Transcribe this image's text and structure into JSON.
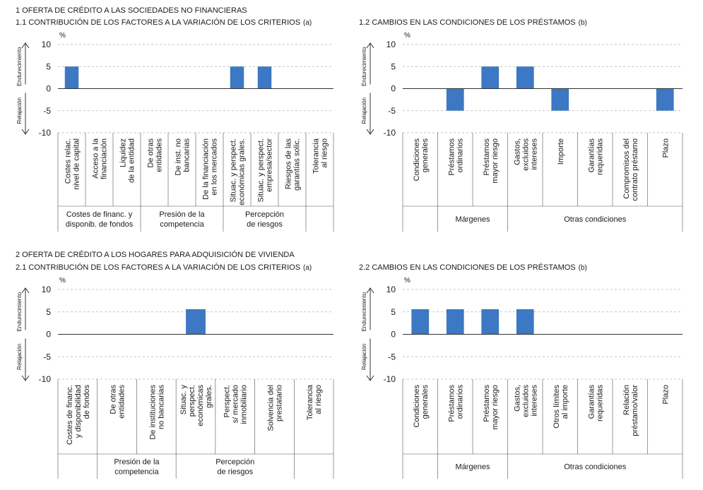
{
  "sections": [
    {
      "title": "1  OFERTA DE CRÉDITO A LAS SOCIEDADES NO FINANCIERAS"
    },
    {
      "title": "2  OFERTA DE CRÉDITO A LOS HOGARES PARA ADQUISICIÓN DE VIVIENDA"
    }
  ],
  "colors": {
    "bar": "#3c78c3",
    "grid": "#b0b0b0",
    "text": "#1a1a1a"
  },
  "chart_data": [
    {
      "type": "bar",
      "title": "1.1  CONTRIBUCIÓN DE LOS FACTORES A LA VARIACIÓN DE LOS CRITERIOS",
      "note": "(a)",
      "unit": "%",
      "ylim": [
        -10,
        10
      ],
      "yticks": [
        "10",
        "5",
        "0",
        "-5",
        "-10"
      ],
      "label_up": "Endurecimiento",
      "label_down": "Relajación",
      "grid": true,
      "categories": [
        [
          "Costes relac.",
          "nivel de capital"
        ],
        [
          "Acceso a la",
          "financiación"
        ],
        [
          "Liquidez",
          "de la entidad"
        ],
        [
          "De otras",
          "entidades"
        ],
        [
          "De inst. no",
          "bancarias"
        ],
        [
          "De la financiación",
          "en los mercados"
        ],
        [
          "Situac. y perspect.",
          "económicas grales."
        ],
        [
          "Situac. y perspect.",
          "empresa/sector"
        ],
        [
          "Riesgos de las",
          "garantías solic."
        ],
        [
          "Tolerancia",
          "al riesgo"
        ]
      ],
      "values": [
        5,
        0,
        0,
        0,
        0,
        0,
        5,
        5,
        0,
        0
      ],
      "groups": [
        {
          "label": [
            "Costes de financ. y",
            "disponib. de fondos"
          ],
          "start": 0,
          "end": 3
        },
        {
          "label": [
            "Presión de la",
            "competencia"
          ],
          "start": 3,
          "end": 6
        },
        {
          "label": [
            "Percepción",
            "de riesgos"
          ],
          "start": 6,
          "end": 9
        },
        {
          "label": [],
          "start": 9,
          "end": 10
        }
      ]
    },
    {
      "type": "bar",
      "title": "1.2  CAMBIOS EN LAS CONDICIONES DE LOS PRÉSTAMOS",
      "note": "(b)",
      "unit": "%",
      "ylim": [
        -10,
        10
      ],
      "yticks": [
        "10",
        "5",
        "0",
        "-5",
        "-10"
      ],
      "label_up": "Endurecimiento",
      "label_down": "Relajación",
      "grid": true,
      "categories": [
        [
          "Condiciones",
          "generales"
        ],
        [
          "Préstamos",
          "ordinarios"
        ],
        [
          "Préstamos",
          "mayor riesgo"
        ],
        [
          "Gastos,",
          "excluidos",
          "intereses"
        ],
        [
          "Importe"
        ],
        [
          "Garantías",
          "requeridas"
        ],
        [
          "Compromisos del",
          "contrato préstamo"
        ],
        [
          "Plazo"
        ]
      ],
      "values": [
        0,
        -5,
        5,
        5,
        -5,
        0,
        0,
        -5
      ],
      "groups": [
        {
          "label": [],
          "start": 0,
          "end": 1
        },
        {
          "label": [
            "Márgenes"
          ],
          "start": 1,
          "end": 3
        },
        {
          "label": [
            "Otras condiciones"
          ],
          "start": 3,
          "end": 8
        }
      ]
    },
    {
      "type": "bar",
      "title": "2.1  CONTRIBUCIÓN DE LOS FACTORES A LA VARIACIÓN DE LOS CRITERIOS",
      "note": "(a)",
      "unit": "%",
      "ylim": [
        -10,
        10
      ],
      "yticks": [
        "10",
        "5",
        "0",
        "-5",
        "-10"
      ],
      "label_up": "Endurecimiento",
      "label_down": "Relajación",
      "grid": true,
      "categories": [
        [
          "Costes de financ.",
          "y disponibilidad",
          "de fondos"
        ],
        [
          "De otras",
          "entidades"
        ],
        [
          "De instituciones",
          "no bancarias"
        ],
        [
          "Situac. y",
          "perspect.",
          "económicas",
          "grales."
        ],
        [
          "Perspect.",
          "s/ mercado",
          "inmobiliario"
        ],
        [
          "Solvencia del",
          "prestatario"
        ],
        [
          "Tolerancia",
          "al riesgo"
        ]
      ],
      "values": [
        0,
        0,
        0,
        5.6,
        0,
        0,
        0
      ],
      "groups": [
        {
          "label": [],
          "start": 0,
          "end": 1
        },
        {
          "label": [
            "Presión de la",
            "competencia"
          ],
          "start": 1,
          "end": 3
        },
        {
          "label": [
            "Percepción",
            "de riesgos"
          ],
          "start": 3,
          "end": 6
        },
        {
          "label": [],
          "start": 6,
          "end": 7
        }
      ]
    },
    {
      "type": "bar",
      "title": "2.2  CAMBIOS EN LAS CONDICIONES DE LOS PRÉSTAMOS",
      "note": "(b)",
      "unit": "%",
      "ylim": [
        -10,
        10
      ],
      "yticks": [
        "10",
        "5",
        "0",
        "-5",
        "-10"
      ],
      "label_up": "Endurecimiento",
      "label_down": "Relajación",
      "grid": true,
      "categories": [
        [
          "Condiciones",
          "generales"
        ],
        [
          "Préstamos",
          "ordinarios"
        ],
        [
          "Préstamos",
          "mayor riesgo"
        ],
        [
          "Gastos,",
          "excluidos",
          "intereses"
        ],
        [
          "Otros límites",
          "al importe"
        ],
        [
          "Garantías",
          "requeridas"
        ],
        [
          "Relación",
          "préstamo/valor"
        ],
        [
          "Plazo"
        ]
      ],
      "values": [
        5.6,
        5.6,
        5.6,
        5.6,
        0,
        0,
        0,
        0
      ],
      "groups": [
        {
          "label": [],
          "start": 0,
          "end": 1
        },
        {
          "label": [
            "Márgenes"
          ],
          "start": 1,
          "end": 3
        },
        {
          "label": [
            "Otras condiciones"
          ],
          "start": 3,
          "end": 8
        }
      ]
    }
  ]
}
